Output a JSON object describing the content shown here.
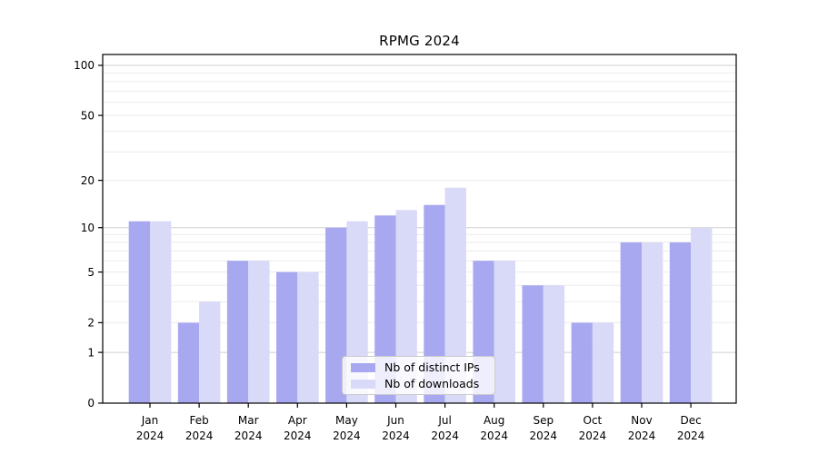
{
  "window": {
    "title": "RPMG 2024"
  },
  "chart_data": {
    "type": "bar",
    "title": "RPMG 2024",
    "categories": [
      "Jan 2024",
      "Feb 2024",
      "Mar 2024",
      "Apr 2024",
      "May 2024",
      "Jun 2024",
      "Jul 2024",
      "Aug 2024",
      "Sep 2024",
      "Oct 2024",
      "Nov 2024",
      "Dec 2024"
    ],
    "x_tick_line1": [
      "Jan",
      "Feb",
      "Mar",
      "Apr",
      "May",
      "Jun",
      "Jul",
      "Aug",
      "Sep",
      "Oct",
      "Nov",
      "Dec"
    ],
    "x_tick_line2": [
      "2024",
      "2024",
      "2024",
      "2024",
      "2024",
      "2024",
      "2024",
      "2024",
      "2024",
      "2024",
      "2024",
      "2024"
    ],
    "series": [
      {
        "name": "Nb of distinct IPs",
        "color": "#a8a8f0",
        "values": [
          11,
          2,
          6,
          5,
          10,
          12,
          14,
          6,
          4,
          2,
          8,
          8
        ]
      },
      {
        "name": "Nb of downloads",
        "color": "#d9d9f8",
        "values": [
          11,
          3,
          6,
          5,
          11,
          13,
          18,
          6,
          4,
          2,
          8,
          10
        ]
      }
    ],
    "xlabel": "",
    "ylabel": "",
    "yscale": "log1p",
    "ylim": [
      0,
      116
    ],
    "ytick_values": [
      0,
      1,
      2,
      5,
      10,
      20,
      50,
      100
    ],
    "ytick_labels": [
      "0",
      "1",
      "2",
      "5",
      "10",
      "20",
      "50",
      "100"
    ],
    "grid": "horizontal, minor log lines + darker lines at 1/10/100",
    "legend_position": "lower center"
  },
  "colors": {
    "ips_bar": "#a8a8f0",
    "downloads_bar": "#d9d9f8",
    "grid_major": "#d0d0d0",
    "grid_minor": "#ebebeb",
    "axis_spine": "#000000",
    "text": "#000000",
    "legend_border": "#cccccc"
  }
}
